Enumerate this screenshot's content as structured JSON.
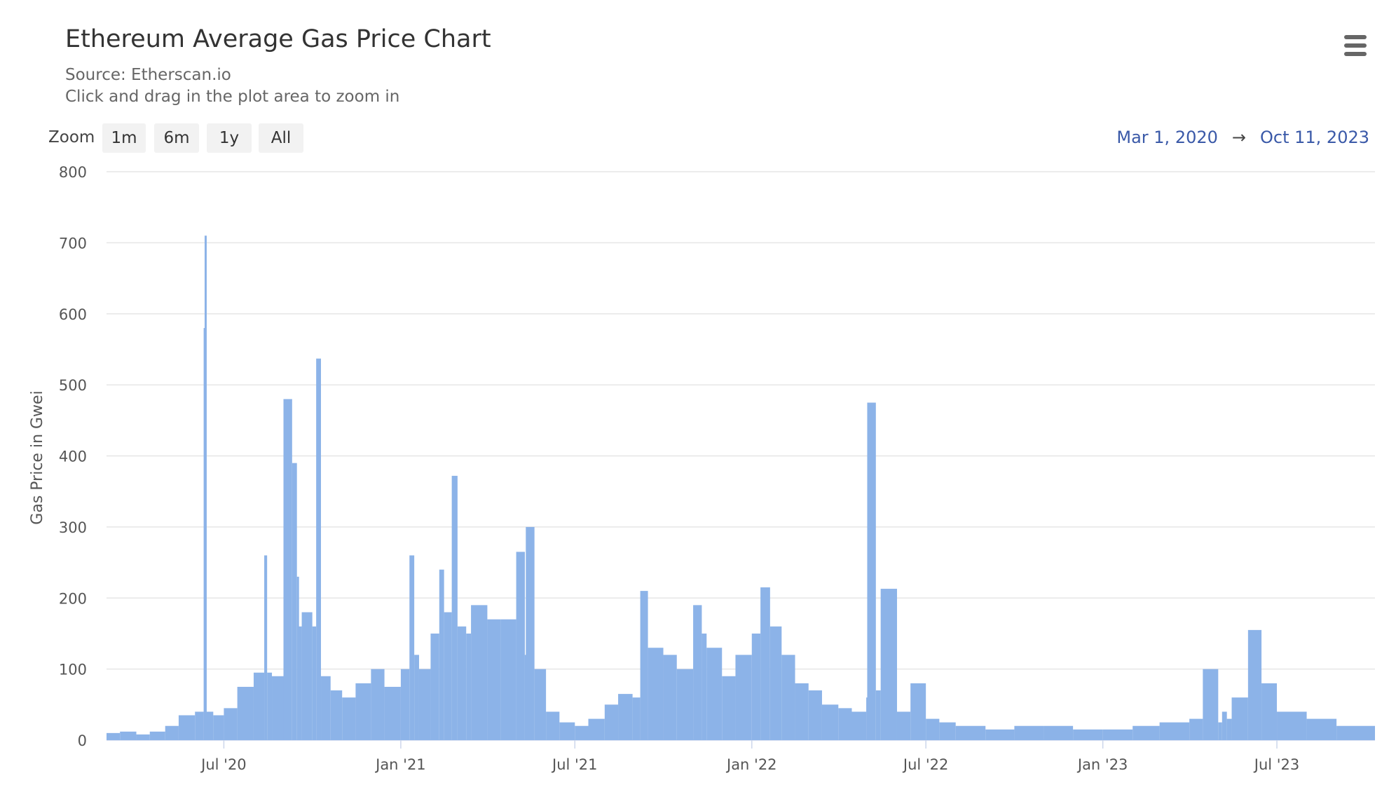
{
  "title": "Ethereum Average Gas Price Chart",
  "subtitle_lines": [
    "Source: Etherscan.io",
    "Click and drag in the plot area to zoom in"
  ],
  "menu_icon": "hamburger-menu-icon",
  "zoom": {
    "label": "Zoom",
    "buttons": [
      "1m",
      "6m",
      "1y",
      "All"
    ]
  },
  "range": {
    "from": "Mar 1, 2020",
    "arrow": "→",
    "to": "Oct 11, 2023"
  },
  "chart_data": {
    "type": "bar",
    "title": "Ethereum Average Gas Price Chart",
    "ylabel": "Gas Price in Gwei",
    "xlabel": "",
    "ylim": [
      0,
      800
    ],
    "yticks": [
      0,
      100,
      200,
      300,
      400,
      500,
      600,
      700,
      800
    ],
    "xlim": [
      "2020-03-01",
      "2023-10-11"
    ],
    "xticks": [
      {
        "label": "Jul '20",
        "date": "2020-07-01"
      },
      {
        "label": "Jan '21",
        "date": "2021-01-01"
      },
      {
        "label": "Jul '21",
        "date": "2021-07-01"
      },
      {
        "label": "Jan '22",
        "date": "2022-01-01"
      },
      {
        "label": "Jul '22",
        "date": "2022-07-01"
      },
      {
        "label": "Jan '23",
        "date": "2023-01-01"
      },
      {
        "label": "Jul '23",
        "date": "2023-07-01"
      }
    ],
    "grid": true,
    "color": "#8cb3e8",
    "series": [
      {
        "values_description": "",
        "x": [
          "2020-03-01",
          "2020-03-15",
          "2020-04-01",
          "2020-04-15",
          "2020-05-01",
          "2020-05-15",
          "2020-06-01",
          "2020-06-10",
          "2020-06-11",
          "2020-06-12",
          "2020-06-20",
          "2020-07-01",
          "2020-07-15",
          "2020-08-01",
          "2020-08-12",
          "2020-08-15",
          "2020-08-20",
          "2020-09-01",
          "2020-09-10",
          "2020-09-15",
          "2020-09-17",
          "2020-09-20",
          "2020-10-01",
          "2020-10-05",
          "2020-10-10",
          "2020-10-20",
          "2020-11-01",
          "2020-11-15",
          "2020-12-01",
          "2020-12-15",
          "2021-01-01",
          "2021-01-10",
          "2021-01-15",
          "2021-01-20",
          "2021-02-01",
          "2021-02-10",
          "2021-02-15",
          "2021-02-23",
          "2021-03-01",
          "2021-03-10",
          "2021-03-15",
          "2021-04-01",
          "2021-04-15",
          "2021-05-01",
          "2021-05-10",
          "2021-05-11",
          "2021-05-20",
          "2021-06-01",
          "2021-06-15",
          "2021-07-01",
          "2021-07-15",
          "2021-08-01",
          "2021-08-15",
          "2021-08-30",
          "2021-09-07",
          "2021-09-15",
          "2021-10-01",
          "2021-10-15",
          "2021-11-01",
          "2021-11-10",
          "2021-11-15",
          "2021-12-01",
          "2021-12-15",
          "2022-01-01",
          "2022-01-10",
          "2022-01-20",
          "2022-02-01",
          "2022-02-15",
          "2022-03-01",
          "2022-03-15",
          "2022-04-01",
          "2022-04-15",
          "2022-04-30",
          "2022-05-01",
          "2022-05-10",
          "2022-05-15",
          "2022-06-01",
          "2022-06-15",
          "2022-07-01",
          "2022-07-15",
          "2022-08-01",
          "2022-09-01",
          "2022-10-01",
          "2022-11-01",
          "2022-12-01",
          "2023-01-01",
          "2023-02-01",
          "2023-03-01",
          "2023-04-01",
          "2023-04-15",
          "2023-05-01",
          "2023-05-05",
          "2023-05-10",
          "2023-05-15",
          "2023-06-01",
          "2023-06-15",
          "2023-07-01",
          "2023-08-01",
          "2023-09-01",
          "2023-10-11"
        ],
        "values": [
          10,
          12,
          8,
          12,
          20,
          35,
          40,
          580,
          710,
          40,
          35,
          45,
          75,
          95,
          260,
          95,
          90,
          480,
          390,
          230,
          160,
          180,
          160,
          537,
          90,
          70,
          60,
          80,
          100,
          75,
          100,
          260,
          120,
          100,
          150,
          240,
          180,
          372,
          160,
          150,
          190,
          170,
          170,
          265,
          120,
          300,
          100,
          40,
          25,
          20,
          30,
          50,
          65,
          60,
          210,
          130,
          120,
          100,
          190,
          150,
          130,
          90,
          120,
          150,
          215,
          160,
          120,
          80,
          70,
          50,
          45,
          40,
          60,
          475,
          70,
          213,
          40,
          80,
          30,
          25,
          20,
          15,
          20,
          20,
          15,
          15,
          20,
          25,
          30,
          100,
          25,
          40,
          30,
          60,
          155,
          80,
          40,
          30,
          20,
          10
        ]
      }
    ]
  }
}
